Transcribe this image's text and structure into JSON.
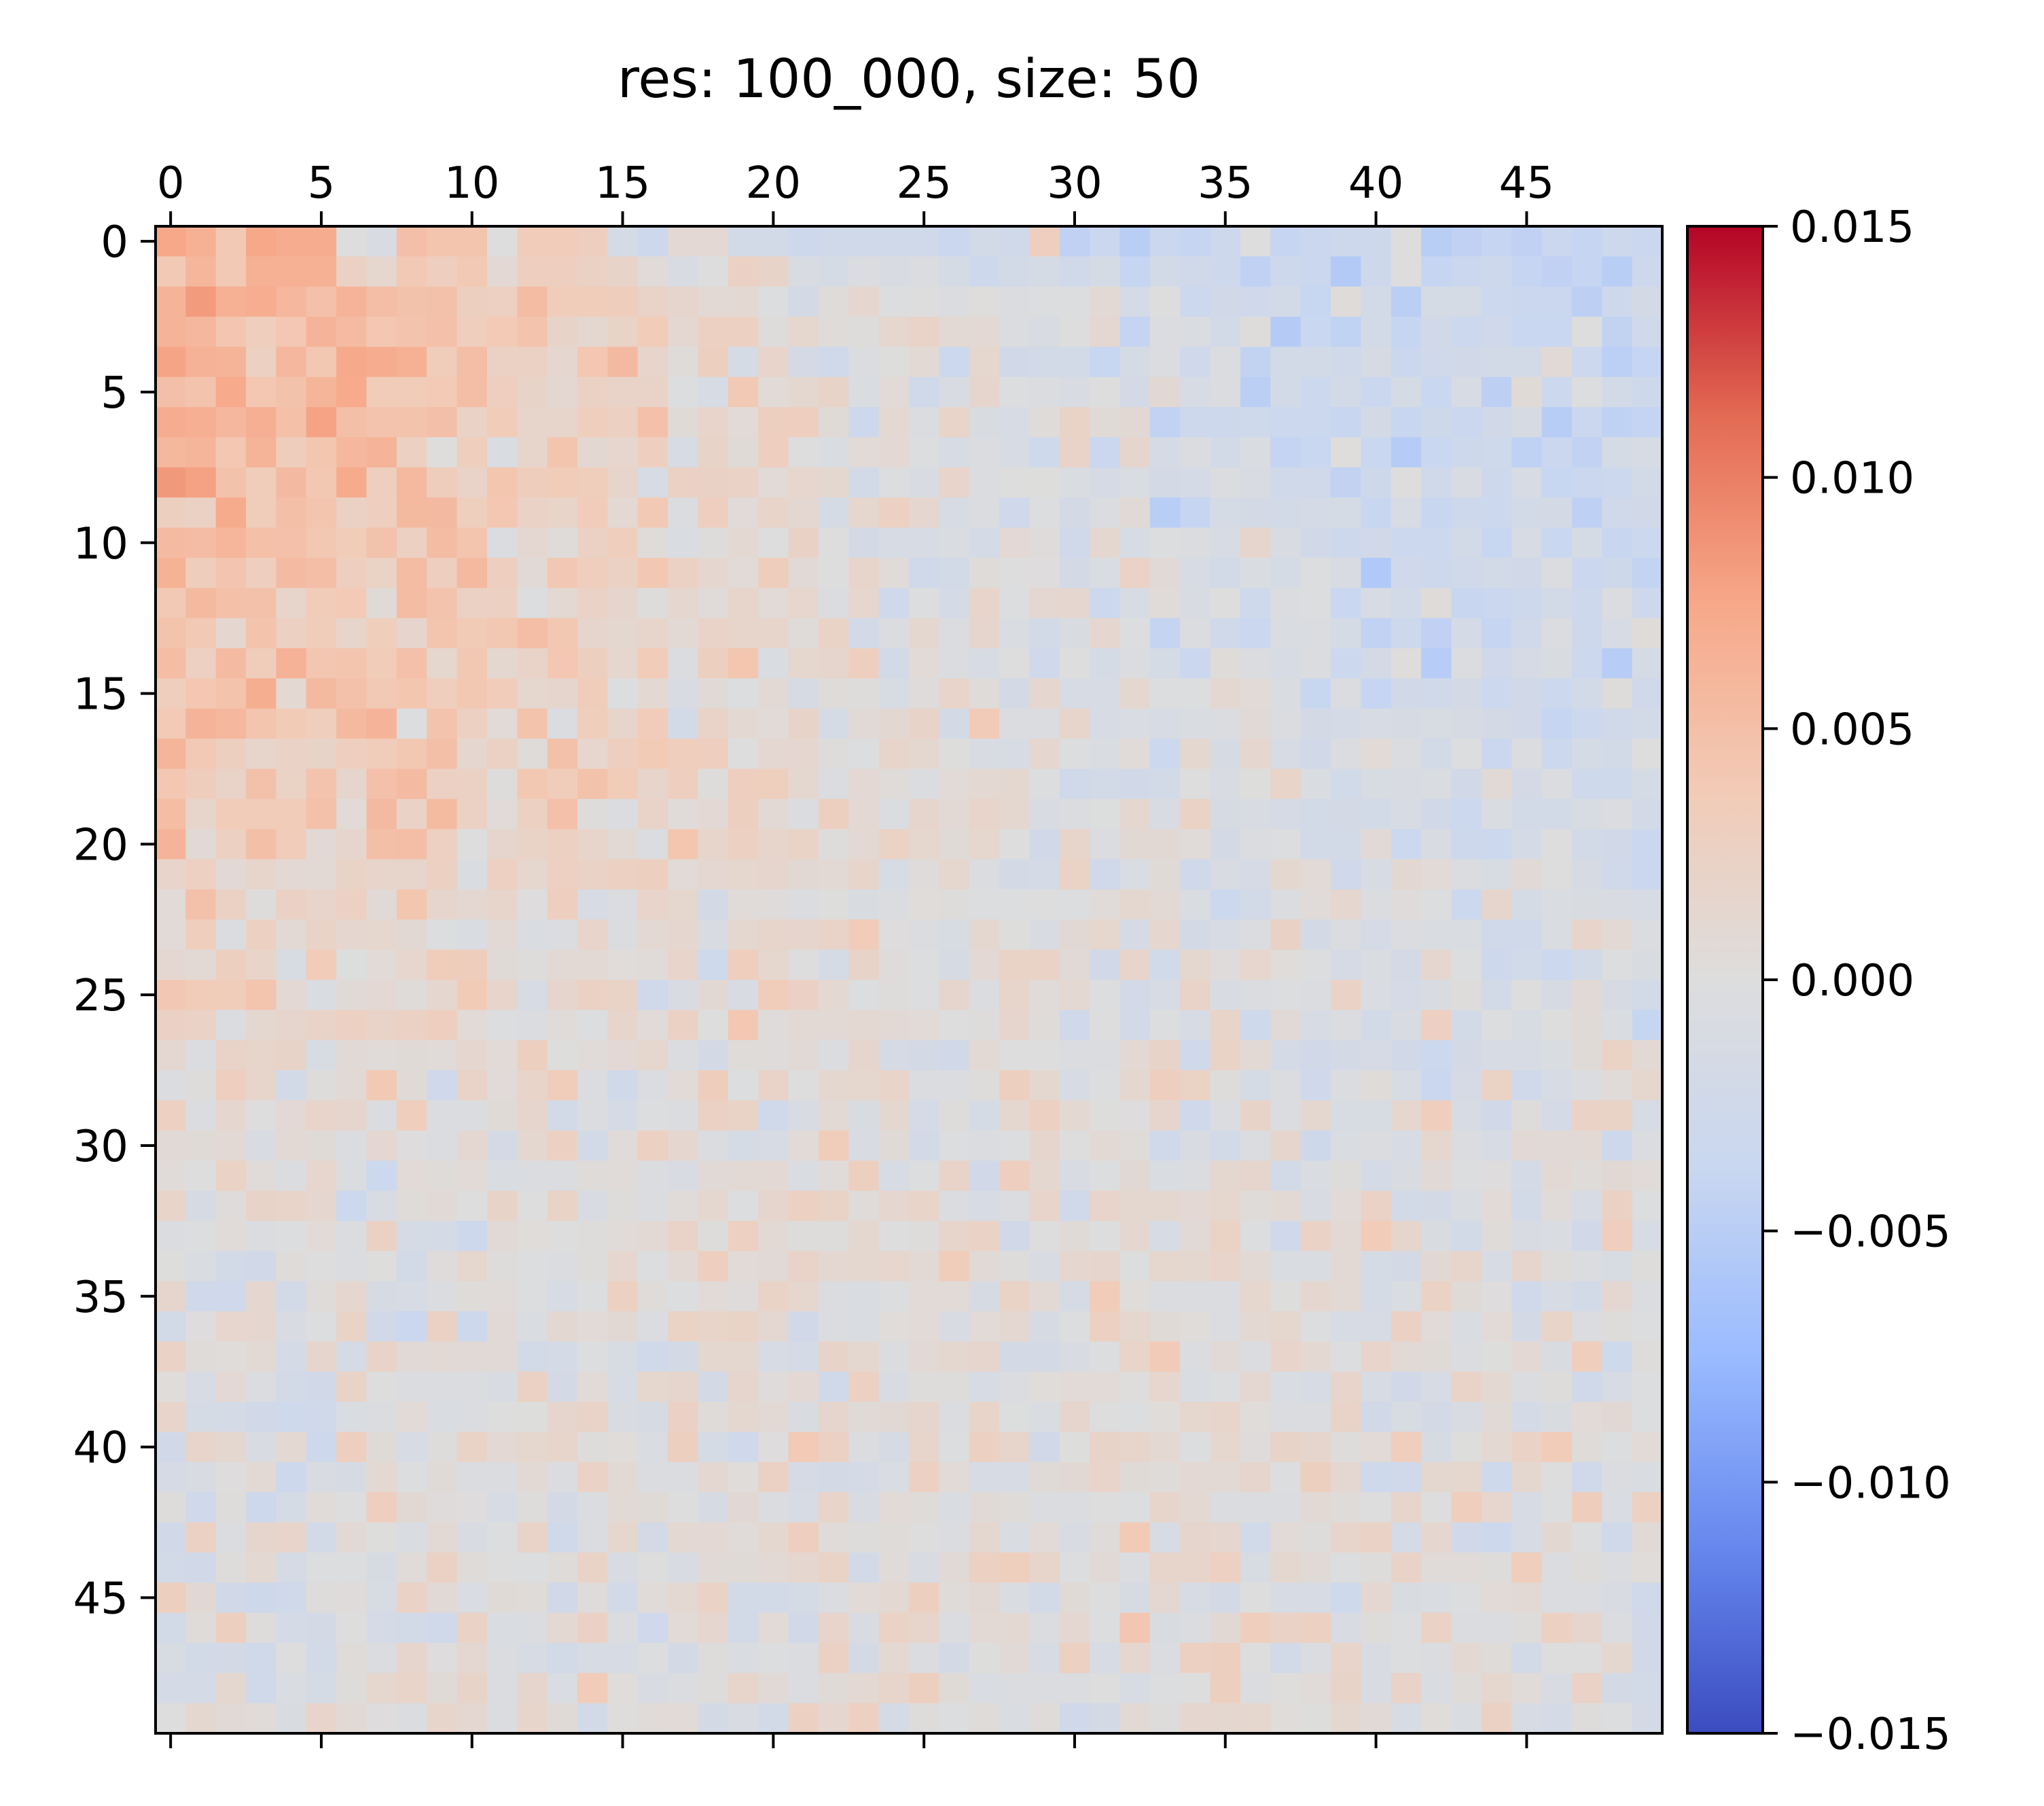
{
  "chart_data": {
    "type": "heatmap",
    "title": "res: 100_000, size: 50",
    "rows": 50,
    "cols": 50,
    "x_ticks": [
      0,
      5,
      10,
      15,
      20,
      25,
      30,
      35,
      40,
      45
    ],
    "x_tick_labels": [
      "0",
      "5",
      "10",
      "15",
      "20",
      "25",
      "30",
      "35",
      "40",
      "45"
    ],
    "y_ticks": [
      0,
      5,
      10,
      15,
      20,
      25,
      30,
      35,
      40,
      45
    ],
    "y_tick_labels": [
      "0",
      "5",
      "10",
      "15",
      "20",
      "25",
      "30",
      "35",
      "40",
      "45"
    ],
    "x_tick_position": "top",
    "colormap": "coolwarm",
    "colorbar": {
      "vmin": -0.015,
      "vmax": 0.015,
      "ticks": [
        0.015,
        0.01,
        0.005,
        0.0,
        -0.005,
        -0.01,
        -0.015
      ],
      "tick_labels": [
        "0.015",
        "0.010",
        "0.005",
        "0.000",
        "−0.005",
        "−0.010",
        "−0.015"
      ]
    },
    "colormap_stops": [
      "#3b4cc0",
      "#6788ee",
      "#9abbff",
      "#c9d7f0",
      "#dddddd",
      "#f2cbb7",
      "#f7a889",
      "#e36a53",
      "#b40426"
    ],
    "row_trends": [
      [
        [
          0,
          0.006
        ],
        [
          5,
          0.006
        ],
        [
          10,
          0.004
        ],
        [
          15,
          0.003
        ],
        [
          20,
          0.001
        ],
        [
          25,
          0.0
        ],
        [
          30,
          -0.001
        ],
        [
          35,
          -0.0025
        ],
        [
          40,
          -0.003
        ],
        [
          49,
          -0.0035
        ]
      ],
      [
        [
          0,
          0.006
        ],
        [
          5,
          0.005
        ],
        [
          10,
          0.0035
        ],
        [
          15,
          0.0025
        ],
        [
          20,
          0.001
        ],
        [
          25,
          0.0
        ],
        [
          30,
          -0.001
        ],
        [
          35,
          -0.002
        ],
        [
          40,
          -0.0025
        ],
        [
          49,
          -0.003
        ]
      ],
      [
        [
          0,
          0.005
        ],
        [
          5,
          0.004
        ],
        [
          10,
          0.003
        ],
        [
          15,
          0.002
        ],
        [
          20,
          0.001
        ],
        [
          25,
          0.0
        ],
        [
          30,
          -0.001
        ],
        [
          35,
          -0.0015
        ],
        [
          40,
          -0.002
        ],
        [
          49,
          -0.0025
        ]
      ],
      [
        [
          0,
          0.004
        ],
        [
          5,
          0.0035
        ],
        [
          10,
          0.003
        ],
        [
          15,
          0.002
        ],
        [
          20,
          0.001
        ],
        [
          25,
          0.0005
        ],
        [
          30,
          -0.0005
        ],
        [
          35,
          -0.001
        ],
        [
          40,
          -0.0015
        ],
        [
          49,
          -0.002
        ]
      ],
      [
        [
          0,
          0.002
        ],
        [
          5,
          0.002
        ],
        [
          10,
          0.0015
        ],
        [
          15,
          0.001
        ],
        [
          20,
          0.001
        ],
        [
          25,
          0.0005
        ],
        [
          30,
          0.0
        ],
        [
          35,
          -0.0005
        ],
        [
          40,
          -0.001
        ],
        [
          49,
          -0.001
        ]
      ],
      [
        [
          0,
          0.001
        ],
        [
          5,
          0.001
        ],
        [
          10,
          0.001
        ],
        [
          15,
          0.0005
        ],
        [
          20,
          0.0005
        ],
        [
          25,
          0.0005
        ],
        [
          30,
          0.0005
        ],
        [
          35,
          0.0
        ],
        [
          40,
          -0.0005
        ],
        [
          49,
          -0.0005
        ]
      ],
      [
        [
          0,
          0.0
        ],
        [
          5,
          0.0
        ],
        [
          10,
          0.0
        ],
        [
          15,
          0.0005
        ],
        [
          20,
          0.0005
        ],
        [
          25,
          0.0005
        ],
        [
          30,
          0.0005
        ],
        [
          35,
          0.0005
        ],
        [
          40,
          0.0
        ],
        [
          49,
          0.0
        ]
      ],
      [
        [
          0,
          -0.0005
        ],
        [
          5,
          -0.0005
        ],
        [
          10,
          0.0
        ],
        [
          15,
          0.0
        ],
        [
          20,
          0.0005
        ],
        [
          25,
          0.0005
        ],
        [
          30,
          0.0005
        ],
        [
          35,
          0.0005
        ],
        [
          40,
          0.0005
        ],
        [
          49,
          0.0
        ]
      ],
      [
        [
          0,
          -0.0005
        ],
        [
          5,
          -0.0005
        ],
        [
          10,
          0.0
        ],
        [
          15,
          0.0
        ],
        [
          20,
          0.0005
        ],
        [
          25,
          0.0005
        ],
        [
          30,
          0.0005
        ],
        [
          35,
          0.001
        ],
        [
          40,
          0.0005
        ],
        [
          49,
          0.0
        ]
      ],
      [
        [
          0,
          0.0
        ],
        [
          5,
          0.0
        ],
        [
          10,
          0.0
        ],
        [
          15,
          0.0
        ],
        [
          20,
          0.0005
        ],
        [
          25,
          0.0005
        ],
        [
          30,
          0.0005
        ],
        [
          35,
          0.001
        ],
        [
          40,
          0.0005
        ],
        [
          49,
          0.0
        ]
      ]
    ],
    "cell_values": [
      [
        0.0075,
        0.0065,
        0.004,
        0.0075,
        0.007,
        0.007,
        0.0,
        -0.001,
        0.005,
        0.0045,
        0.0045,
        0.0,
        0.0035,
        0.0035,
        0.003,
        -0.0015,
        -0.003,
        0.001,
        0.001,
        -0.002,
        -0.002,
        -0.003,
        -0.0025,
        -0.0025,
        -0.0025,
        -0.0025,
        -0.0035,
        -0.002,
        -0.0025,
        0.003,
        -0.0045,
        -0.0035,
        -0.005,
        -0.0035,
        -0.004,
        -0.003,
        0.0,
        -0.004,
        -0.0035,
        -0.003,
        -0.003,
        0.0,
        -0.005,
        -0.0045,
        -0.004,
        -0.0045,
        -0.0035,
        -0.004,
        -0.003,
        -0.0035
      ],
      [
        0.004,
        0.006,
        0.004,
        0.0065,
        0.0065,
        0.0065,
        0.0025,
        0.0015,
        0.004,
        0.003,
        0.004,
        0.001,
        0.003,
        0.003,
        0.0025,
        0.002,
        0.0005,
        -0.001,
        0.0,
        0.0025,
        0.002,
        -0.001,
        -0.0015,
        -0.0005,
        -0.001,
        -0.0005,
        -0.0015,
        -0.003,
        -0.002,
        -0.0015,
        -0.0025,
        -0.0015,
        -0.004,
        -0.002,
        -0.0025,
        -0.003,
        -0.0045,
        -0.003,
        -0.0035,
        -0.0055,
        -0.003,
        0.0,
        -0.004,
        -0.0035,
        -0.003,
        -0.004,
        -0.0045,
        -0.004,
        -0.005,
        -0.003
      ]
    ]
  }
}
